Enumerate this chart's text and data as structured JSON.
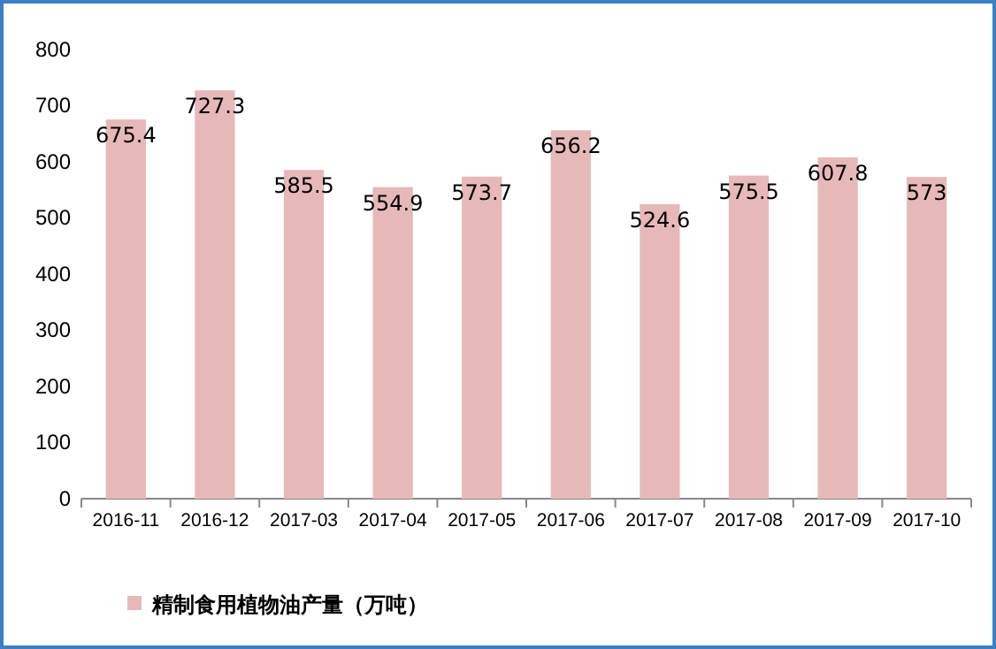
{
  "chart_data": {
    "type": "bar",
    "categories": [
      "2016-11",
      "2016-12",
      "2017-03",
      "2017-04",
      "2017-05",
      "2017-06",
      "2017-07",
      "2017-08",
      "2017-09",
      "2017-10"
    ],
    "series": [
      {
        "name": "精制食用植物油产量（万吨）",
        "color": "#e6b9b8",
        "values": [
          675.4,
          727.3,
          585.5,
          554.9,
          573.7,
          656.2,
          524.6,
          575.5,
          607.8,
          573
        ]
      }
    ],
    "ylim": [
      0,
      800
    ],
    "yticks": [
      0,
      100,
      200,
      300,
      400,
      500,
      600,
      700,
      800
    ],
    "data_labels": true,
    "legend": "bottom",
    "grid": false
  }
}
